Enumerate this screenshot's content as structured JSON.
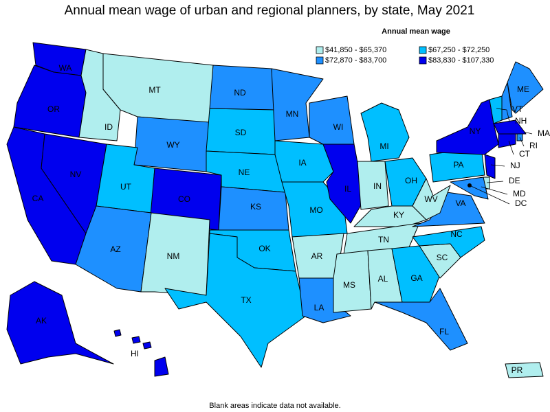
{
  "title": "Annual mean wage of urban and regional planners, by state, May 2021",
  "legend": {
    "title": "Annual mean wage",
    "entries": [
      {
        "label": "$41,850 - $65,370",
        "color": "#b0eeee"
      },
      {
        "label": "$67,250 - $72,250",
        "color": "#00bfff"
      },
      {
        "label": "$72,870 - $83,700",
        "color": "#1e90ff"
      },
      {
        "label": "$83,830 - $107,330",
        "color": "#0000ee"
      }
    ]
  },
  "states": [
    {
      "label": "WA",
      "class": 3
    },
    {
      "label": "OR",
      "class": 3
    },
    {
      "label": "CA",
      "class": 3
    },
    {
      "label": "NV",
      "class": 3
    },
    {
      "label": "ID",
      "class": 0
    },
    {
      "label": "MT",
      "class": 0
    },
    {
      "label": "WY",
      "class": 2
    },
    {
      "label": "UT",
      "class": 1
    },
    {
      "label": "CO",
      "class": 3
    },
    {
      "label": "AZ",
      "class": 2
    },
    {
      "label": "NM",
      "class": 0
    },
    {
      "label": "ND",
      "class": 2
    },
    {
      "label": "SD",
      "class": 1
    },
    {
      "label": "NE",
      "class": 1
    },
    {
      "label": "KS",
      "class": 2
    },
    {
      "label": "OK",
      "class": 1
    },
    {
      "label": "TX",
      "class": 1
    },
    {
      "label": "MN",
      "class": 2
    },
    {
      "label": "IA",
      "class": 1
    },
    {
      "label": "MO",
      "class": 1
    },
    {
      "label": "AR",
      "class": 0
    },
    {
      "label": "LA",
      "class": 2
    },
    {
      "label": "WI",
      "class": 2
    },
    {
      "label": "IL",
      "class": 3
    },
    {
      "label": "MI",
      "class": 1
    },
    {
      "label": "IN",
      "class": 0
    },
    {
      "label": "OH",
      "class": 1
    },
    {
      "label": "KY",
      "class": 0
    },
    {
      "label": "TN",
      "class": 0
    },
    {
      "label": "MS",
      "class": 0
    },
    {
      "label": "AL",
      "class": 0
    },
    {
      "label": "GA",
      "class": 1
    },
    {
      "label": "FL",
      "class": 2
    },
    {
      "label": "SC",
      "class": 0
    },
    {
      "label": "NC",
      "class": 1
    },
    {
      "label": "VA",
      "class": 2
    },
    {
      "label": "WV",
      "class": 0
    },
    {
      "label": "PA",
      "class": 1
    },
    {
      "label": "NY",
      "class": 3
    },
    {
      "label": "VT",
      "class": 1
    },
    {
      "label": "NH",
      "class": 2
    },
    {
      "label": "ME",
      "class": 2
    },
    {
      "label": "MA",
      "class": 3
    },
    {
      "label": "RI",
      "class": 2
    },
    {
      "label": "CT",
      "class": 3
    },
    {
      "label": "NJ",
      "class": 3
    },
    {
      "label": "DE",
      "class": 0
    },
    {
      "label": "MD",
      "class": 2
    },
    {
      "label": "DC",
      "class": 3
    },
    {
      "label": "AK",
      "class": 3
    },
    {
      "label": "HI",
      "class": 3
    },
    {
      "label": "PR",
      "class": 0
    }
  ],
  "footnote": "Blank areas indicate data not available."
}
